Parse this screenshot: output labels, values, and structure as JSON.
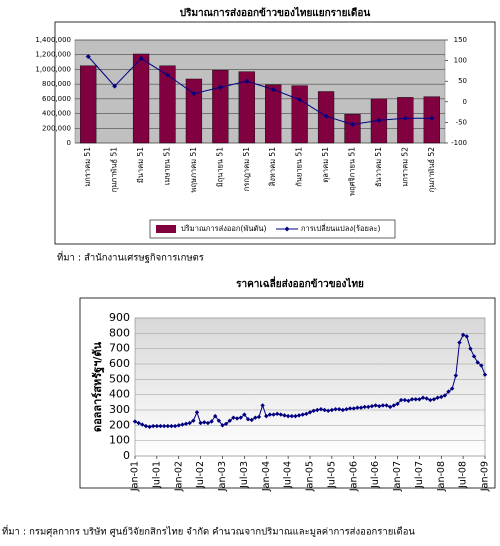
{
  "chart_data": [
    {
      "type": "bar",
      "title": "ปริมาณการส่งออกข้าวของไทยแยกรายเดือน",
      "categories": [
        "มกราคม 51",
        "กุมภาพันธ์ 51",
        "มีนาคม 51",
        "เมษายน 51",
        "พฤษภาคม 51",
        "มิถุนายน 51",
        "กรกฎาคม 51",
        "สิงหาคม 51",
        "กันยายน 51",
        "ตุลาคม 51",
        "พฤศจิกายน 51",
        "ธันวาคม 51",
        "มกราคม 52",
        "กุมภาพันธ์ 52"
      ],
      "series": [
        {
          "name": "ปริมาณการส่งออก(พันตัน)",
          "color": "#800040",
          "values": [
            1050000,
            null,
            1210000,
            1050000,
            870000,
            990000,
            970000,
            790000,
            780000,
            700000,
            390000,
            600000,
            620000,
            630000
          ]
        },
        {
          "name": "การเปลี่ยนแปลง(ร้อยละ)",
          "color": "#000080",
          "axis": "y2",
          "values": [
            110,
            38,
            105,
            65,
            20,
            35,
            50,
            30,
            5,
            -35,
            -55,
            -45,
            -40,
            -40
          ]
        }
      ],
      "ylim": [
        0,
        1400000
      ],
      "yticks": [
        0,
        {
          "value": 200000,
          "label": "200,000"
        },
        {
          "value": 400000,
          "label": "400,000"
        },
        {
          "value": 600000,
          "label": "600,000"
        },
        {
          "value": 800000,
          "label": "800,000"
        },
        {
          "value": 1000000,
          "label": "1,000,000"
        },
        {
          "value": 1200000,
          "label": "1,200,000"
        },
        {
          "value": 1400000,
          "label": "1,400,000"
        }
      ],
      "y2lim": [
        -100,
        150
      ],
      "y2ticks": [
        -100,
        -50,
        0,
        50,
        100,
        150
      ],
      "grid": true,
      "legend": "bottom",
      "source": "ที่มา : สำนักงานเศรษฐกิจการเกษตร"
    },
    {
      "type": "line",
      "title": "ราคาเฉลี่ยส่งออกข้าวของไทย",
      "y_label": "ดอลลาร์สหรัฐฯ/ตัน",
      "color": "#000080",
      "categories": [
        "Jan-01",
        null,
        null,
        null,
        null,
        null,
        "Jul-01",
        null,
        null,
        null,
        null,
        null,
        "Jan-02",
        null,
        null,
        null,
        null,
        null,
        "Jul-02",
        null,
        null,
        null,
        null,
        null,
        "Jan-03",
        null,
        null,
        null,
        null,
        null,
        "Jul-03",
        null,
        null,
        null,
        null,
        null,
        "Jan-04",
        null,
        null,
        null,
        null,
        null,
        "Jul-04",
        null,
        null,
        null,
        null,
        null,
        "Jan-05",
        null,
        null,
        null,
        null,
        null,
        "Jul-05",
        null,
        null,
        null,
        null,
        null,
        "Jan-06",
        null,
        null,
        null,
        null,
        null,
        "Jul-06",
        null,
        null,
        null,
        null,
        null,
        "Jan-07",
        null,
        null,
        null,
        null,
        null,
        "Jul-07",
        null,
        null,
        null,
        null,
        null,
        "Jan-08",
        null,
        null,
        null,
        null,
        null,
        "Jul-08",
        null,
        null,
        null,
        null,
        null,
        "Jan-09"
      ],
      "values": [
        225,
        215,
        205,
        195,
        190,
        195,
        195,
        195,
        195,
        195,
        195,
        195,
        200,
        205,
        210,
        215,
        230,
        285,
        215,
        220,
        215,
        225,
        260,
        230,
        200,
        210,
        230,
        250,
        245,
        250,
        270,
        240,
        235,
        250,
        255,
        330,
        260,
        270,
        270,
        275,
        270,
        265,
        260,
        260,
        260,
        265,
        270,
        275,
        285,
        295,
        300,
        305,
        300,
        295,
        300,
        305,
        305,
        300,
        305,
        310,
        310,
        315,
        315,
        320,
        320,
        325,
        330,
        325,
        330,
        330,
        320,
        330,
        340,
        365,
        365,
        360,
        370,
        370,
        370,
        380,
        375,
        365,
        370,
        380,
        385,
        395,
        420,
        440,
        525,
        740,
        790,
        780,
        700,
        650,
        610,
        590,
        530
      ],
      "ylim": [
        0,
        900
      ],
      "yticks": [
        0,
        100,
        200,
        300,
        400,
        500,
        600,
        700,
        800,
        900
      ],
      "grid": true,
      "source": "ที่มา : กรมศุลกากร บริษัท ศูนย์วิจัยกสิกรไทย จำกัด คำนวณจากปริมาณและมูลค่าการส่งออกรายเดือน"
    }
  ]
}
